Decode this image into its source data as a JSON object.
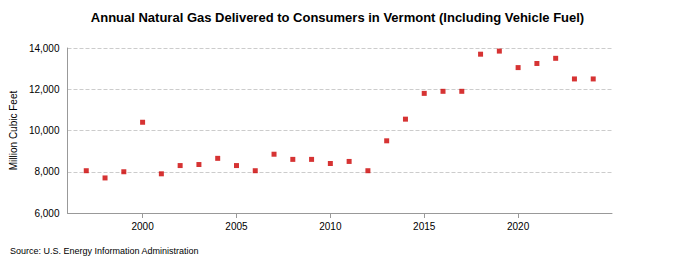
{
  "chart_data": {
    "type": "scatter",
    "title": "Annual Natural Gas Delivered to Consumers in Vermont (Including Vehicle Fuel)",
    "y_label": "Million Cubic Feet",
    "source": "Source: U.S. Energy Information Administration",
    "x": [
      1997,
      1998,
      1999,
      2000,
      2001,
      2002,
      2003,
      2004,
      2005,
      2006,
      2007,
      2008,
      2009,
      2010,
      2011,
      2012,
      2013,
      2014,
      2015,
      2016,
      2017,
      2018,
      2019,
      2020,
      2021,
      2022,
      2023,
      2024
    ],
    "values": [
      8050,
      7700,
      8000,
      10400,
      7900,
      8300,
      8350,
      8650,
      8300,
      8050,
      8850,
      8600,
      8600,
      8400,
      8500,
      8050,
      9500,
      10550,
      11800,
      11900,
      11900,
      13700,
      13850,
      13050,
      13250,
      13500,
      12500,
      12500
    ],
    "color": "#cc0000",
    "marker": "square",
    "xlim": [
      1996,
      2025
    ],
    "xticks": [
      2000,
      2005,
      2010,
      2015,
      2020
    ],
    "ylim": [
      6000,
      14000
    ],
    "yticks": [
      {
        "value": 6000,
        "label": "6,000"
      },
      {
        "value": 8000,
        "label": "8,000"
      },
      {
        "value": 10000,
        "label": "10,000"
      },
      {
        "value": 12000,
        "label": "12,000"
      },
      {
        "value": 14000,
        "label": "14,000"
      }
    ],
    "grid": true
  }
}
